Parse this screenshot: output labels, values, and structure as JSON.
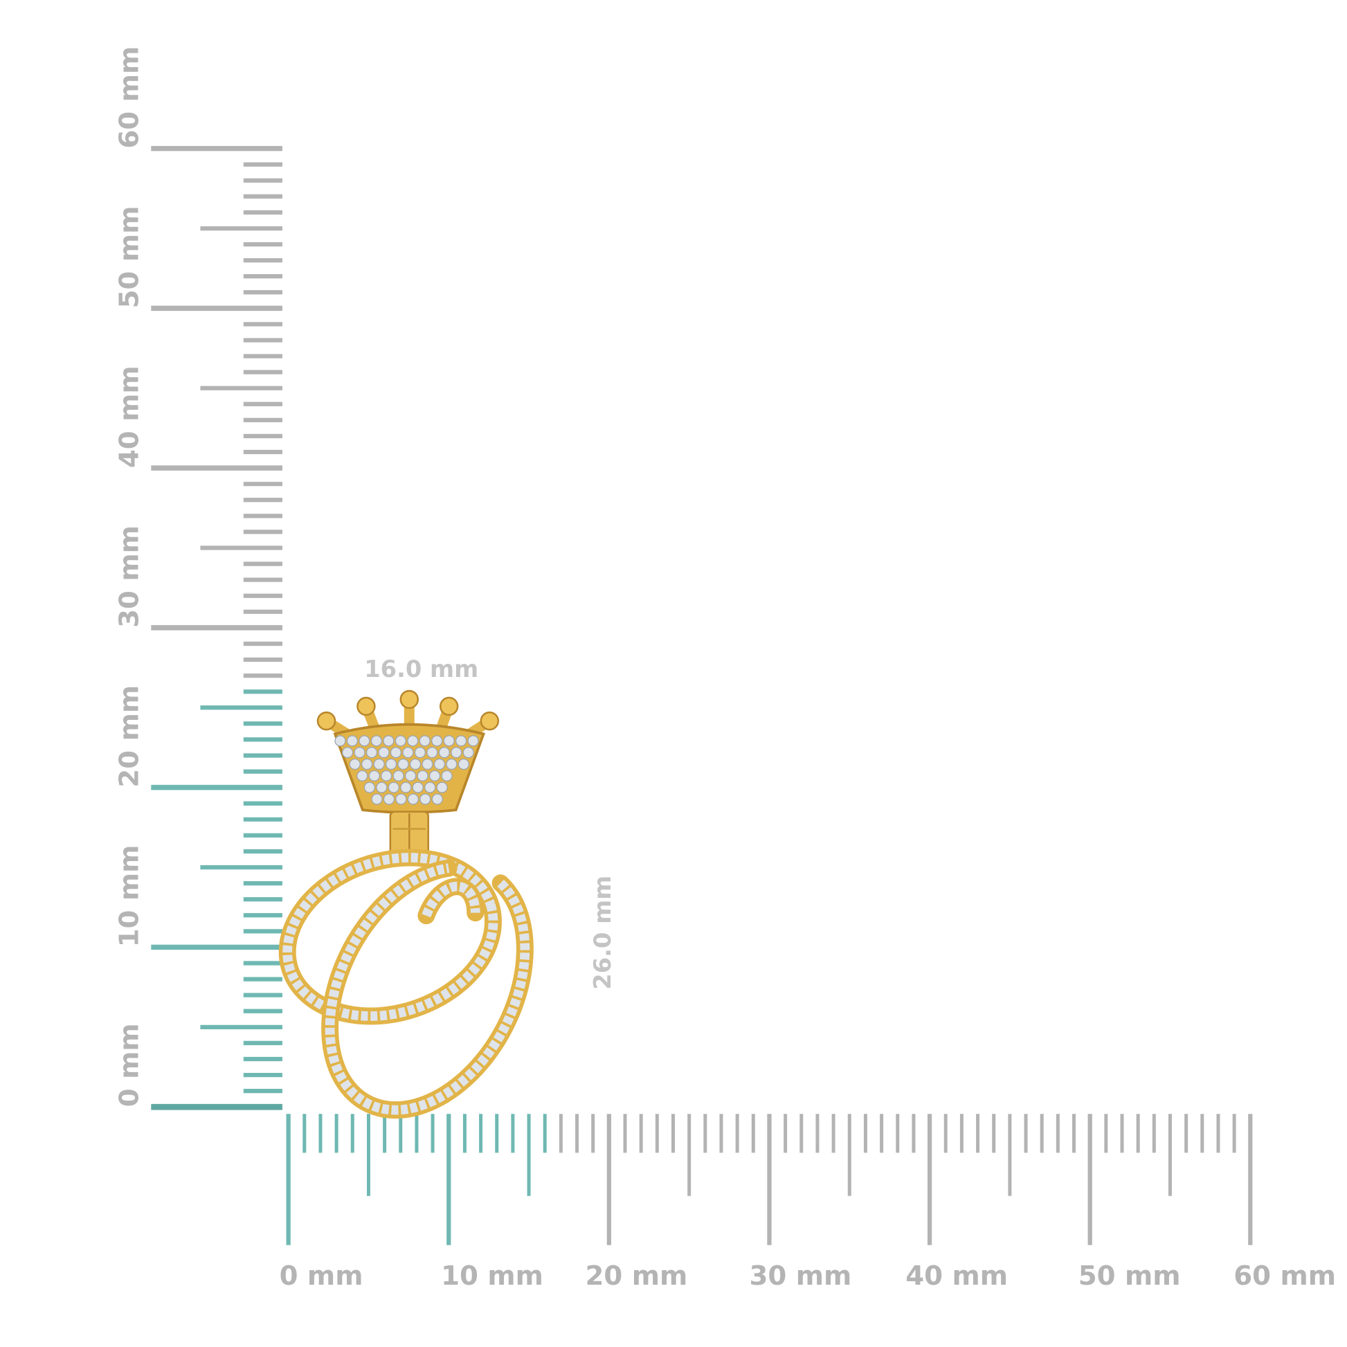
{
  "vertical_ruler": {
    "labels": [
      "0 mm",
      "10 mm",
      "20 mm",
      "30 mm",
      "40 mm",
      "50 mm",
      "60 mm"
    ],
    "max_mm": 60,
    "highlight_mm": 26
  },
  "horizontal_ruler": {
    "labels": [
      "0 mm",
      "10 mm",
      "20 mm",
      "30 mm",
      "40 mm",
      "50 mm",
      "60 mm"
    ],
    "max_mm": 60,
    "highlight_mm": 16
  },
  "dimensions": {
    "width_label": "16.0 mm",
    "height_label": "26.0 mm"
  },
  "colors": {
    "highlight": "#6fb8b2",
    "ruler": "#b3b3b3",
    "label": "#b4b4b4",
    "gold": "#e2b448",
    "gold_dark": "#b8862a",
    "diamond": "#dfe4ea"
  }
}
